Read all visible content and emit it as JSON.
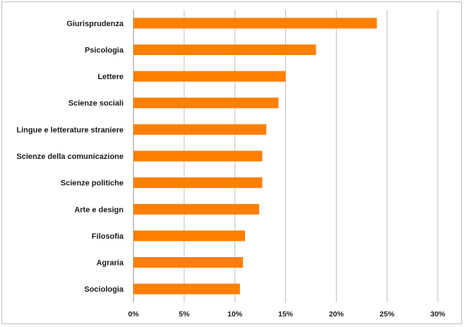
{
  "chart_data": {
    "type": "bar",
    "orientation": "horizontal",
    "categories": [
      "Giurisprudenza",
      "Psicologia",
      "Lettere",
      "Scienze sociali",
      "Lingue e letterature straniere",
      "Scienze della comunicazione",
      "Scienze politiche",
      "Arte e design",
      "Filosofia",
      "Agraria",
      "Sociologia"
    ],
    "values": [
      24.0,
      18.0,
      15.0,
      14.3,
      13.1,
      12.7,
      12.7,
      12.4,
      11.0,
      10.8,
      10.5
    ],
    "xlim": [
      0,
      30
    ],
    "xticks": [
      0,
      5,
      10,
      15,
      20,
      25,
      30
    ],
    "xtick_labels": [
      "0%",
      "5%",
      "10%",
      "15%",
      "20%",
      "25%",
      "30%"
    ],
    "grid": "vertical",
    "title": "",
    "xlabel": "",
    "ylabel": "",
    "bar_color": "#ff7f00",
    "grid_color": "#bfbfbf"
  }
}
